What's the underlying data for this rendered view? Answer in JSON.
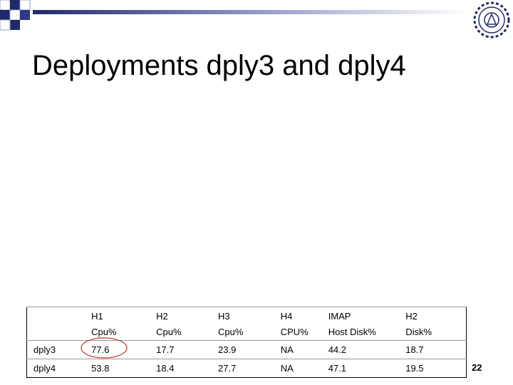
{
  "title": "Deployments dply3 and dply4",
  "table": {
    "header": [
      {
        "lines": [
          "H1",
          "Cpu%"
        ]
      },
      {
        "lines": [
          "H2",
          "Cpu%"
        ]
      },
      {
        "lines": [
          "H3",
          "Cpu%"
        ]
      },
      {
        "lines": [
          "H4",
          "CPU%"
        ]
      },
      {
        "lines": [
          "IMAP",
          "Host Disk%"
        ]
      },
      {
        "lines": [
          "H2",
          "Disk%"
        ]
      }
    ],
    "rows": [
      [
        "dply3",
        77.6,
        17.7,
        23.9,
        "NA",
        44.2,
        18.7
      ],
      [
        "dply4",
        53.8,
        18.4,
        27.7,
        "NA",
        47.1,
        19.5
      ]
    ]
  },
  "page_number": "22"
}
